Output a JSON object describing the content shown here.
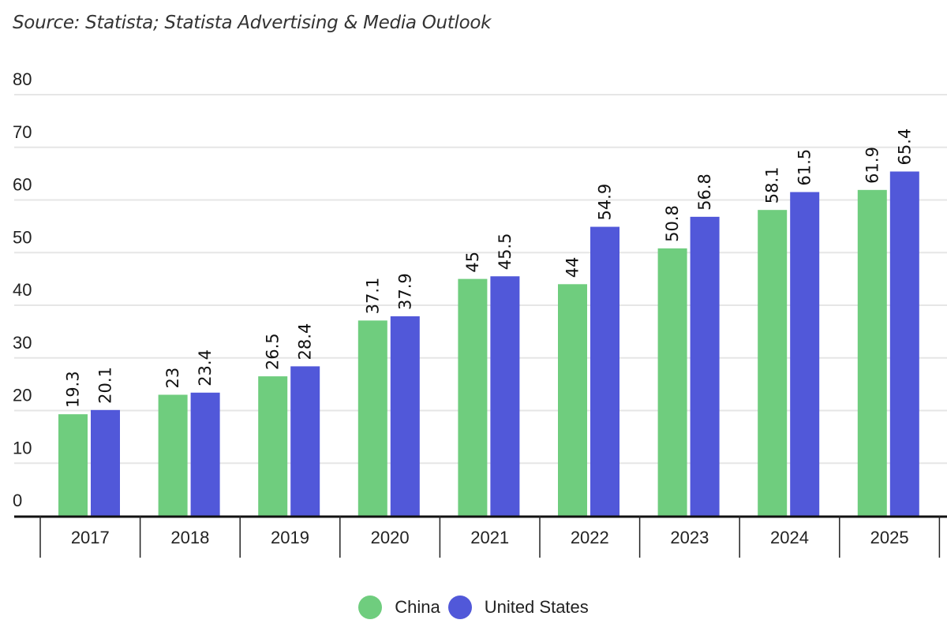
{
  "chart_data": {
    "type": "bar",
    "title": "",
    "source": "Source: Statista; Statista Advertising & Media Outlook",
    "xlabel": "",
    "ylabel": "",
    "ylim": [
      0,
      80
    ],
    "yticks": [
      0,
      10,
      20,
      30,
      40,
      50,
      60,
      70,
      80
    ],
    "grid": true,
    "legend_position": "bottom-center",
    "categories": [
      "2017",
      "2018",
      "2019",
      "2020",
      "2021",
      "2022",
      "2023",
      "2024",
      "2025"
    ],
    "series": [
      {
        "name": "China",
        "color": "#6fcd7e",
        "values": [
          19.3,
          23,
          26.5,
          37.1,
          45,
          44,
          50.8,
          58.1,
          61.9
        ],
        "labels": [
          "19.3",
          "23",
          "26.5",
          "37.1",
          "45",
          "44",
          "50.8",
          "58.1",
          "61.9"
        ]
      },
      {
        "name": "United States",
        "color": "#5158d9",
        "values": [
          20.1,
          23.4,
          28.4,
          37.9,
          45.5,
          54.9,
          56.8,
          61.5,
          65.4
        ],
        "labels": [
          "20.1",
          "23.4",
          "28.4",
          "37.9",
          "45.5",
          "54.9",
          "56.8",
          "61.5",
          "65.4"
        ]
      }
    ]
  }
}
